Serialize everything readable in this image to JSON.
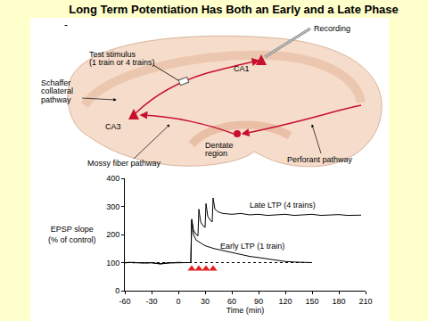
{
  "slide": {
    "title": "Long Term Potentiation Has Both an Early and a Late Phase",
    "bullet": "-"
  },
  "diagram": {
    "labels": {
      "test_stimulus": "Test stimulus\n(1 train or 4 trains)",
      "recording": "Recording",
      "schaffer": "Schaffer\ncollateral\npathway",
      "ca1": "CA1",
      "ca3": "CA3",
      "dentate": "Dentate\nregion",
      "mossy": "Mossy fiber pathway",
      "perforant": "Perforant pathway"
    }
  },
  "chart_data": {
    "type": "line",
    "xlabel": "Time (min)",
    "ylabel": "EPSP slope\n(% of control)",
    "xlim": [
      -60,
      210
    ],
    "xticks": [
      -60,
      -30,
      0,
      30,
      60,
      90,
      120,
      150,
      180,
      210
    ],
    "ylim": [
      0,
      400
    ],
    "yticks": [
      0,
      100,
      200,
      300,
      400
    ],
    "grid": false,
    "series": [
      {
        "name": "Late LTP (4 trains)",
        "color": "#000000",
        "x": [
          -60,
          -55,
          -50,
          -45,
          -40,
          -35,
          -30,
          -25,
          -20,
          -15,
          -10,
          -5,
          0,
          5,
          10,
          14,
          15,
          17,
          20,
          22,
          23,
          25,
          28,
          30,
          31,
          33,
          36,
          38,
          39,
          41,
          45,
          50,
          60,
          70,
          80,
          90,
          100,
          110,
          120,
          130,
          140,
          150,
          160,
          170,
          180,
          190,
          200,
          205
        ],
        "values": [
          100,
          101,
          99,
          100,
          98,
          100,
          99,
          97,
          95,
          97,
          99,
          100,
          101,
          100,
          100,
          100,
          255,
          215,
          200,
          195,
          290,
          245,
          230,
          225,
          310,
          265,
          250,
          245,
          330,
          290,
          280,
          275,
          272,
          275,
          270,
          272,
          268,
          270,
          272,
          268,
          270,
          272,
          268,
          270,
          271,
          268,
          270,
          269
        ]
      },
      {
        "name": "Early LTP (1 train)",
        "color": "#000000",
        "x": [
          -60,
          -55,
          -50,
          -45,
          -40,
          -35,
          -30,
          -25,
          -20,
          -15,
          -10,
          -5,
          0,
          5,
          10,
          14,
          15,
          17,
          20,
          25,
          30,
          40,
          50,
          60,
          70,
          80,
          90,
          100,
          110,
          120,
          130,
          140,
          150
        ],
        "values": [
          99,
          100,
          101,
          99,
          100,
          98,
          100,
          98,
          96,
          98,
          100,
          99,
          100,
          101,
          100,
          100,
          250,
          200,
          180,
          170,
          160,
          150,
          143,
          135,
          128,
          122,
          118,
          113,
          108,
          104,
          102,
          100,
          100
        ]
      },
      {
        "color": "#000000",
        "line_style": "dotted",
        "x": [
          -60,
          150
        ],
        "values": [
          100,
          100
        ]
      },
      {
        "type": "scatter",
        "marker": "triangle-up",
        "color": "#e02020",
        "x": [
          15,
          23,
          31,
          39
        ],
        "values": [
          78,
          78,
          78,
          78
        ]
      }
    ]
  }
}
